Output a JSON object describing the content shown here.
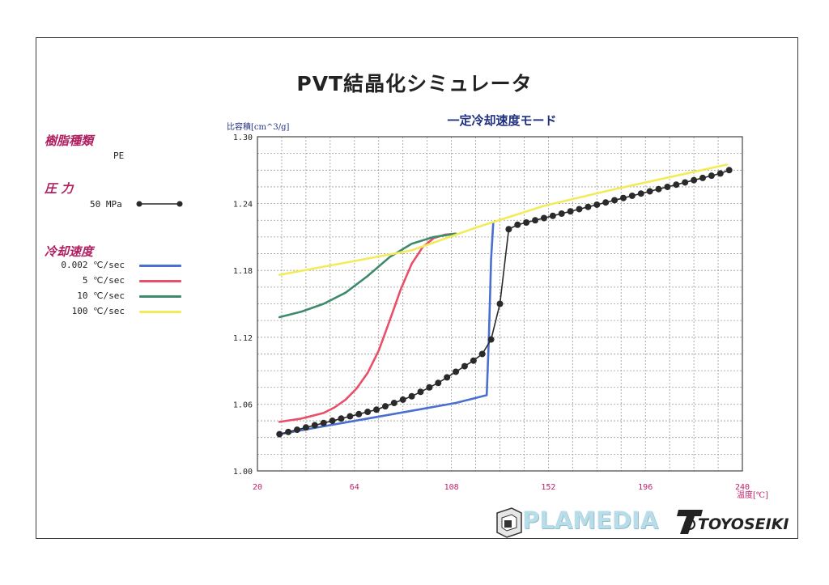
{
  "page_title": "PVT結晶化シミュレータ",
  "resin": {
    "label": "樹脂種類",
    "value": "PE"
  },
  "pressure": {
    "label": "圧 力",
    "value": "50 MPa"
  },
  "cooling": {
    "label": "冷却速度",
    "items": [
      {
        "text": "0.002 ℃/sec",
        "color": "#4a6fd0"
      },
      {
        "text": "5 ℃/sec",
        "color": "#e8506a"
      },
      {
        "text": "10 ℃/sec",
        "color": "#3e8a6a"
      },
      {
        "text": "100 ℃/sec",
        "color": "#f2ec5a"
      }
    ]
  },
  "logos": {
    "plamedia": "PLAMEDIA",
    "toyoseiki": "TOYOSEIKI"
  },
  "colors": {
    "section_label": "#b02060",
    "tick_label_x": "#c0206a",
    "tick_label_y": "#222222",
    "chart_title": "#203080",
    "measured": "#2a2a2a"
  },
  "chart_data": {
    "type": "line",
    "title": "一定冷却速度モード",
    "xlabel": "温度[℃]",
    "ylabel": "比容積[cm^3/g]",
    "xlim": [
      20,
      240
    ],
    "ylim": [
      1.0,
      1.3
    ],
    "x_ticks": [
      "20",
      "64",
      "108",
      "152",
      "196",
      "240"
    ],
    "y_ticks": [
      "1.00",
      "1.06",
      "1.12",
      "1.18",
      "1.24",
      "1.30"
    ],
    "grid": true,
    "series": [
      {
        "name": "0.002 ℃/sec",
        "color": "#4a6fd0",
        "x": [
          30,
          50,
          70,
          90,
          110,
          124,
          125,
          126,
          127
        ],
        "y": [
          1.033,
          1.04,
          1.047,
          1.054,
          1.061,
          1.068,
          1.12,
          1.19,
          1.223
        ]
      },
      {
        "name": "5 ℃/sec",
        "color": "#e8506a",
        "x": [
          30,
          40,
          50,
          55,
          60,
          65,
          70,
          75,
          80,
          85,
          90,
          95,
          100,
          105,
          110
        ],
        "y": [
          1.044,
          1.047,
          1.052,
          1.057,
          1.064,
          1.074,
          1.088,
          1.108,
          1.135,
          1.163,
          1.186,
          1.201,
          1.209,
          1.212,
          1.213
        ]
      },
      {
        "name": "10 ℃/sec",
        "color": "#3e8a6a",
        "x": [
          30,
          40,
          50,
          60,
          70,
          80,
          90,
          100,
          110
        ],
        "y": [
          1.138,
          1.143,
          1.15,
          1.16,
          1.175,
          1.192,
          1.204,
          1.21,
          1.213
        ]
      },
      {
        "name": "100 ℃/sec",
        "color": "#f2ec5a",
        "x": [
          30,
          60,
          90,
          120,
          150,
          180,
          210,
          233
        ],
        "y": [
          1.176,
          1.187,
          1.198,
          1.219,
          1.238,
          1.252,
          1.265,
          1.275
        ]
      },
      {
        "name": "50 MPa",
        "color": "#2a2a2a",
        "markers": true,
        "x": [
          30,
          34,
          38,
          42,
          46,
          50,
          54,
          58,
          62,
          66,
          70,
          74,
          78,
          82,
          86,
          90,
          94,
          98,
          102,
          106,
          110,
          114,
          118,
          122,
          126,
          130,
          134,
          138,
          142,
          146,
          150,
          154,
          158,
          162,
          166,
          170,
          174,
          178,
          182,
          186,
          190,
          194,
          198,
          202,
          206,
          210,
          214,
          218,
          222,
          226,
          230,
          234
        ],
        "y": [
          1.033,
          1.035,
          1.037,
          1.039,
          1.041,
          1.043,
          1.045,
          1.047,
          1.049,
          1.051,
          1.053,
          1.055,
          1.058,
          1.061,
          1.064,
          1.067,
          1.071,
          1.075,
          1.079,
          1.084,
          1.089,
          1.094,
          1.099,
          1.105,
          1.118,
          1.15,
          1.217,
          1.221,
          1.223,
          1.225,
          1.227,
          1.229,
          1.231,
          1.233,
          1.235,
          1.237,
          1.239,
          1.241,
          1.243,
          1.245,
          1.247,
          1.249,
          1.251,
          1.253,
          1.255,
          1.257,
          1.259,
          1.261,
          1.263,
          1.265,
          1.267,
          1.27
        ]
      }
    ]
  }
}
